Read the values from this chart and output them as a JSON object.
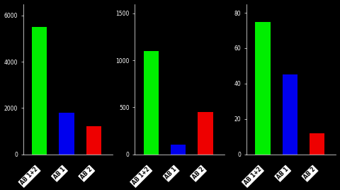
{
  "subplots": [
    {
      "yticks": [
        0,
        2000,
        4000,
        6000
      ],
      "ylim": [
        0,
        6500
      ],
      "values": [
        5500,
        1800,
        1200
      ]
    },
    {
      "yticks": [
        0,
        500,
        1000,
        1500
      ],
      "ylim": [
        0,
        1600
      ],
      "values": [
        1100,
        100,
        450
      ]
    },
    {
      "yticks": [
        0,
        20,
        40,
        60,
        80
      ],
      "ylim": [
        0,
        85
      ],
      "values": [
        75,
        45,
        12
      ]
    }
  ],
  "categories": [
    "AB 1+2",
    "AB 1",
    "AB 2"
  ],
  "bar_colors": [
    "#00ee00",
    "#0000ee",
    "#ee0000"
  ],
  "background_color": "#000000",
  "text_color": "#ffffff",
  "bar_width": 0.55,
  "figsize": [
    4.8,
    2.68
  ],
  "dpi": 100,
  "label_fontsize": 5.5,
  "tick_fontsize": 5.5
}
